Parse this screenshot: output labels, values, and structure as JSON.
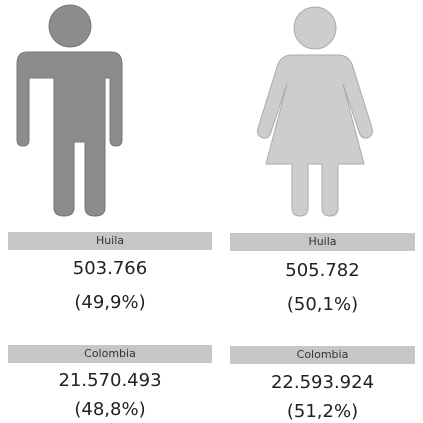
{
  "columns": [
    {
      "regions": [
        {
          "label": "Huila",
          "value": "503.766",
          "percent": "(49,9%)"
        },
        {
          "label": "Colombia",
          "value": "21.570.493",
          "percent": "(48,8%)"
        }
      ]
    },
    {
      "regions": [
        {
          "label": "Huila",
          "value": "505.782",
          "percent": "(50,1%)"
        },
        {
          "label": "Colombia",
          "value": "22.593.924",
          "percent": "(51,2%)"
        }
      ]
    }
  ]
}
